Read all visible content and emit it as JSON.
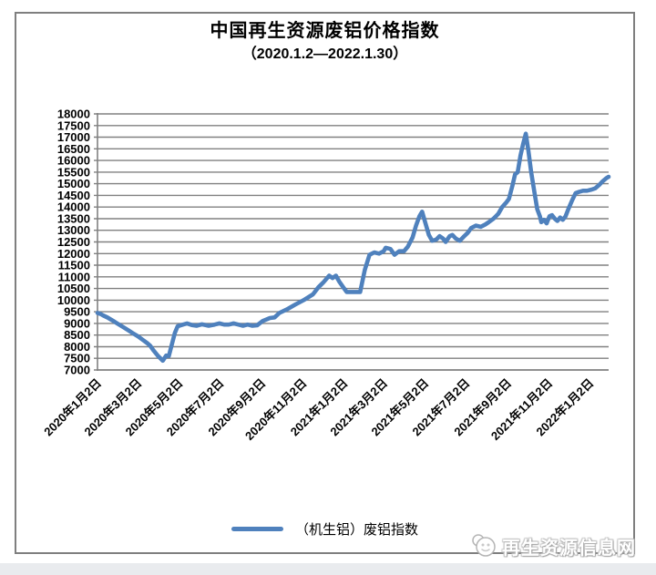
{
  "figure": {
    "title": "中国再生资源废铝价格指数",
    "subtitle": "（2020.1.2—2022.1.30）"
  },
  "legend": {
    "series_label": "（机生铝）废铝指数"
  },
  "watermark": {
    "site_name": "再生资源信息网",
    "logo_icon": "panda-mascot-icon"
  },
  "colors": {
    "line": "#4F81BD",
    "gridline": "#808080",
    "axis": "#808080",
    "frame_border": "#7f7f7f",
    "text": "#000000",
    "bottom_strip": "#e9ebee",
    "watermark_text": "#ffffff"
  },
  "chart_data": {
    "type": "line",
    "title": "中国再生资源废铝价格指数（2020.1.2—2022.1.30）",
    "xlabel": "",
    "ylabel": "",
    "grid": "horizontal",
    "legend_position": "bottom",
    "ylim": [
      7000,
      18000
    ],
    "y_tick_step": 500,
    "y_tick_labels": [
      7000,
      7500,
      8000,
      8500,
      9000,
      9500,
      10000,
      10500,
      11000,
      11500,
      12000,
      12500,
      13000,
      13500,
      14000,
      14500,
      15000,
      15500,
      16000,
      16500,
      17000,
      17500,
      18000
    ],
    "x_range": [
      "2020-01-02",
      "2022-01-30"
    ],
    "x_ticks": [
      {
        "date": "2020-01-02",
        "label": "2020年1月2日"
      },
      {
        "date": "2020-03-02",
        "label": "2020年3月2日"
      },
      {
        "date": "2020-05-02",
        "label": "2020年5月2日"
      },
      {
        "date": "2020-07-02",
        "label": "2020年7月2日"
      },
      {
        "date": "2020-09-02",
        "label": "2020年9月2日"
      },
      {
        "date": "2020-11-02",
        "label": "2020年11月2日"
      },
      {
        "date": "2021-01-02",
        "label": "2021年1月2日"
      },
      {
        "date": "2021-03-02",
        "label": "2021年3月2日"
      },
      {
        "date": "2021-05-02",
        "label": "2021年5月2日"
      },
      {
        "date": "2021-07-02",
        "label": "2021年7月2日"
      },
      {
        "date": "2021-09-02",
        "label": "2021年9月2日"
      },
      {
        "date": "2021-11-02",
        "label": "2021年11月2日"
      },
      {
        "date": "2022-01-02",
        "label": "2022年1月2日"
      }
    ],
    "series": [
      {
        "name": "（机生铝）废铝指数",
        "color": "#4F81BD",
        "points": [
          [
            "2020-01-02",
            9450
          ],
          [
            "2020-01-07",
            9400
          ],
          [
            "2020-01-10",
            9350
          ],
          [
            "2020-01-17",
            9250
          ],
          [
            "2020-01-23",
            9150
          ],
          [
            "2020-02-03",
            8950
          ],
          [
            "2020-02-10",
            8830
          ],
          [
            "2020-02-17",
            8700
          ],
          [
            "2020-02-24",
            8570
          ],
          [
            "2020-03-02",
            8450
          ],
          [
            "2020-03-09",
            8300
          ],
          [
            "2020-03-16",
            8150
          ],
          [
            "2020-03-20",
            8050
          ],
          [
            "2020-03-25",
            7850
          ],
          [
            "2020-04-01",
            7600
          ],
          [
            "2020-04-08",
            7400
          ],
          [
            "2020-04-13",
            7620
          ],
          [
            "2020-04-17",
            7600
          ],
          [
            "2020-04-21",
            8050
          ],
          [
            "2020-04-26",
            8600
          ],
          [
            "2020-04-30",
            8880
          ],
          [
            "2020-05-08",
            8950
          ],
          [
            "2020-05-14",
            9000
          ],
          [
            "2020-05-21",
            8930
          ],
          [
            "2020-05-28",
            8900
          ],
          [
            "2020-06-05",
            8960
          ],
          [
            "2020-06-15",
            8900
          ],
          [
            "2020-06-24",
            8950
          ],
          [
            "2020-07-01",
            9000
          ],
          [
            "2020-07-08",
            8950
          ],
          [
            "2020-07-15",
            8950
          ],
          [
            "2020-07-22",
            9000
          ],
          [
            "2020-07-29",
            8950
          ],
          [
            "2020-08-05",
            8900
          ],
          [
            "2020-08-12",
            8950
          ],
          [
            "2020-08-19",
            8900
          ],
          [
            "2020-08-26",
            8920
          ],
          [
            "2020-09-03",
            9100
          ],
          [
            "2020-09-14",
            9230
          ],
          [
            "2020-09-21",
            9260
          ],
          [
            "2020-09-28",
            9450
          ],
          [
            "2020-10-09",
            9600
          ],
          [
            "2020-10-21",
            9800
          ],
          [
            "2020-11-03",
            10000
          ],
          [
            "2020-11-17",
            10250
          ],
          [
            "2020-11-25",
            10550
          ],
          [
            "2020-12-02",
            10750
          ],
          [
            "2020-12-11",
            11050
          ],
          [
            "2020-12-16",
            10950
          ],
          [
            "2020-12-21",
            11050
          ],
          [
            "2020-12-26",
            10800
          ],
          [
            "2021-01-01",
            10550
          ],
          [
            "2021-01-06",
            10350
          ],
          [
            "2021-01-26",
            10350
          ],
          [
            "2021-02-02",
            11300
          ],
          [
            "2021-02-09",
            11950
          ],
          [
            "2021-02-16",
            12050
          ],
          [
            "2021-02-23",
            12000
          ],
          [
            "2021-03-02",
            12100
          ],
          [
            "2021-03-05",
            12250
          ],
          [
            "2021-03-12",
            12200
          ],
          [
            "2021-03-18",
            11950
          ],
          [
            "2021-03-25",
            12100
          ],
          [
            "2021-04-01",
            12100
          ],
          [
            "2021-04-07",
            12300
          ],
          [
            "2021-04-14",
            12700
          ],
          [
            "2021-04-19",
            13200
          ],
          [
            "2021-04-24",
            13600
          ],
          [
            "2021-04-28",
            13800
          ],
          [
            "2021-05-03",
            13300
          ],
          [
            "2021-05-08",
            12800
          ],
          [
            "2021-05-13",
            12550
          ],
          [
            "2021-05-19",
            12600
          ],
          [
            "2021-05-24",
            12750
          ],
          [
            "2021-05-29",
            12650
          ],
          [
            "2021-06-02",
            12500
          ],
          [
            "2021-06-08",
            12750
          ],
          [
            "2021-06-12",
            12800
          ],
          [
            "2021-06-17",
            12650
          ],
          [
            "2021-06-23",
            12550
          ],
          [
            "2021-06-28",
            12700
          ],
          [
            "2021-07-05",
            12900
          ],
          [
            "2021-07-10",
            13100
          ],
          [
            "2021-07-17",
            13200
          ],
          [
            "2021-07-24",
            13150
          ],
          [
            "2021-07-31",
            13250
          ],
          [
            "2021-08-05",
            13350
          ],
          [
            "2021-08-12",
            13500
          ],
          [
            "2021-08-19",
            13700
          ],
          [
            "2021-08-25",
            14000
          ],
          [
            "2021-08-31",
            14200
          ],
          [
            "2021-09-04",
            14350
          ],
          [
            "2021-09-09",
            14900
          ],
          [
            "2021-09-13",
            15400
          ],
          [
            "2021-09-17",
            15500
          ],
          [
            "2021-09-21",
            16200
          ],
          [
            "2021-09-25",
            16700
          ],
          [
            "2021-09-29",
            17150
          ],
          [
            "2021-10-03",
            16400
          ],
          [
            "2021-10-07",
            15500
          ],
          [
            "2021-10-12",
            14600
          ],
          [
            "2021-10-16",
            13900
          ],
          [
            "2021-10-20",
            13600
          ],
          [
            "2021-10-22",
            13350
          ],
          [
            "2021-10-26",
            13450
          ],
          [
            "2021-10-30",
            13300
          ],
          [
            "2021-11-03",
            13600
          ],
          [
            "2021-11-07",
            13650
          ],
          [
            "2021-11-11",
            13500
          ],
          [
            "2021-11-15",
            13400
          ],
          [
            "2021-11-19",
            13550
          ],
          [
            "2021-11-23",
            13450
          ],
          [
            "2021-11-27",
            13600
          ],
          [
            "2021-12-01",
            13900
          ],
          [
            "2021-12-07",
            14300
          ],
          [
            "2021-12-12",
            14600
          ],
          [
            "2021-12-17",
            14650
          ],
          [
            "2021-12-23",
            14700
          ],
          [
            "2021-12-29",
            14700
          ],
          [
            "2022-01-05",
            14750
          ],
          [
            "2022-01-10",
            14800
          ],
          [
            "2022-01-16",
            14950
          ],
          [
            "2022-01-21",
            15100
          ],
          [
            "2022-01-27",
            15250
          ],
          [
            "2022-01-30",
            15300
          ]
        ]
      }
    ]
  }
}
